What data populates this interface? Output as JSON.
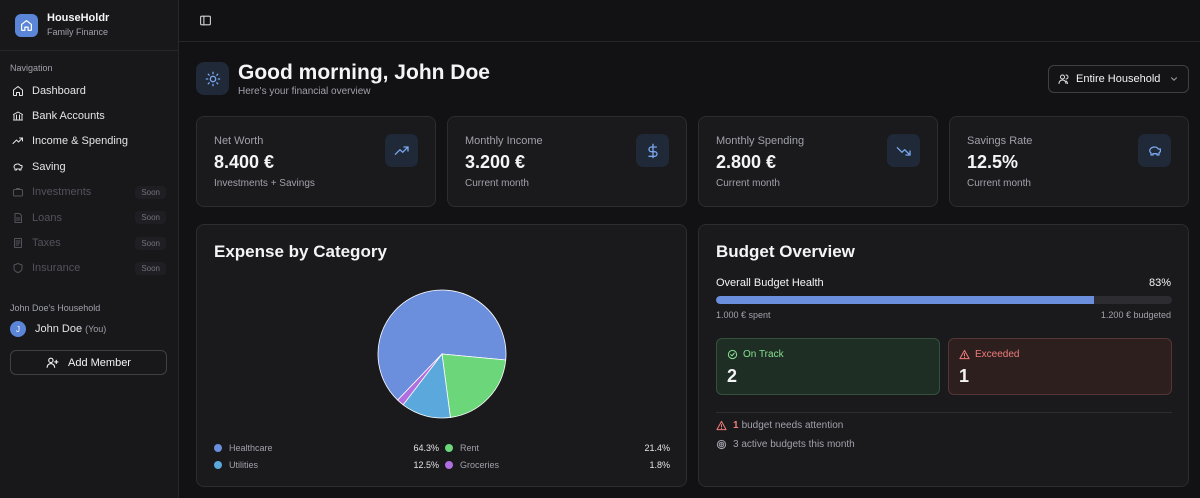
{
  "brand": {
    "name": "HouseHoldr",
    "subtitle": "Family Finance"
  },
  "sidebar": {
    "nav_label": "Navigation",
    "items": [
      {
        "label": "Dashboard",
        "icon": "home-icon",
        "disabled": false
      },
      {
        "label": "Bank Accounts",
        "icon": "bank-icon",
        "disabled": false
      },
      {
        "label": "Income & Spending",
        "icon": "trend-icon",
        "disabled": false
      },
      {
        "label": "Saving",
        "icon": "piggy-bank-icon",
        "disabled": false
      },
      {
        "label": "Investments",
        "icon": "briefcase-icon",
        "disabled": true,
        "badge": "Soon"
      },
      {
        "label": "Loans",
        "icon": "document-icon",
        "disabled": true,
        "badge": "Soon"
      },
      {
        "label": "Taxes",
        "icon": "receipt-icon",
        "disabled": true,
        "badge": "Soon"
      },
      {
        "label": "Insurance",
        "icon": "shield-icon",
        "disabled": true,
        "badge": "Soon"
      }
    ],
    "household_label": "John Doe's Household",
    "member": {
      "initial": "J",
      "name": "John Doe",
      "tag": "(You)"
    },
    "add_member_label": "Add Member"
  },
  "header": {
    "greeting": "Good morning, John Doe",
    "subtitle": "Here's your financial overview",
    "scope_selected": "Entire Household"
  },
  "stats": [
    {
      "label": "Net Worth",
      "value": "8.400 €",
      "sub": "Investments + Savings",
      "icon": "trending-up-icon"
    },
    {
      "label": "Monthly Income",
      "value": "3.200 €",
      "sub": "Current month",
      "icon": "dollar-icon"
    },
    {
      "label": "Monthly Spending",
      "value": "2.800 €",
      "sub": "Current month",
      "icon": "trending-down-icon"
    },
    {
      "label": "Savings Rate",
      "value": "12.5%",
      "sub": "Current month",
      "icon": "piggy-bank-icon"
    }
  ],
  "expense": {
    "title": "Expense by Category",
    "legend": [
      {
        "name": "Healthcare",
        "pct": "64.3%"
      },
      {
        "name": "Rent",
        "pct": "21.4%"
      },
      {
        "name": "Utilities",
        "pct": "12.5%"
      },
      {
        "name": "Groceries",
        "pct": "1.8%"
      }
    ]
  },
  "chart_data": {
    "type": "pie",
    "categories": [
      "Healthcare",
      "Rent",
      "Utilities",
      "Groceries"
    ],
    "values": [
      64.3,
      21.4,
      12.5,
      1.8
    ],
    "colors": [
      "#6b8fdc",
      "#6bd67a",
      "#5aa8dc",
      "#b06ee0"
    ]
  },
  "budget": {
    "title": "Budget Overview",
    "health_label": "Overall Budget Health",
    "health_pct": "83%",
    "health_fraction": 0.83,
    "spent": "1.000 € spent",
    "budgeted": "1.200 € budgeted",
    "on_track_label": "On Track",
    "on_track_count": "2",
    "exceeded_label": "Exceeded",
    "exceeded_count": "1",
    "attention_count": "1",
    "attention_text": "budget needs attention",
    "active_text": "3 active budgets this month"
  },
  "colors": {
    "accent": "#5b85d6",
    "success": "#86e08f",
    "danger": "#ef7b7b"
  }
}
